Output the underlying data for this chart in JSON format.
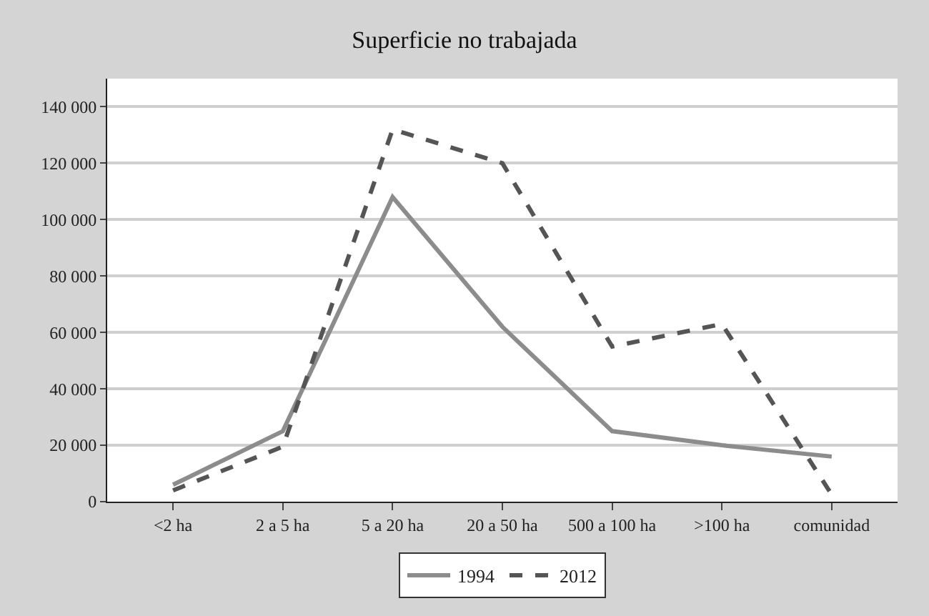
{
  "chart_data": {
    "type": "line",
    "title": "Superficie no trabajada",
    "categories": [
      "<2 ha",
      "2 a 5 ha",
      "5 a 20 ha",
      "20 a 50 ha",
      "500 a 100 ha",
      ">100 ha",
      "comunidad"
    ],
    "series": [
      {
        "name": "1994",
        "color": "#8c8c8c",
        "line_style": "solid",
        "values": [
          6000,
          25000,
          108000,
          62000,
          25000,
          20000,
          16000
        ]
      },
      {
        "name": "2012",
        "color": "#555555",
        "line_style": "dashed",
        "values": [
          4000,
          19500,
          132000,
          120000,
          55000,
          63000,
          2500
        ]
      }
    ],
    "ylim": [
      0,
      150000
    ],
    "yticks": [
      {
        "value": 0,
        "label": "0"
      },
      {
        "value": 20000,
        "label": "20 000"
      },
      {
        "value": 40000,
        "label": "40 000"
      },
      {
        "value": 60000,
        "label": "60 000"
      },
      {
        "value": 80000,
        "label": "80 000"
      },
      {
        "value": 100000,
        "label": "100 000"
      },
      {
        "value": 120000,
        "label": "120 000"
      },
      {
        "value": 140000,
        "label": "140 000"
      }
    ],
    "grid": "y",
    "legend": "bottom",
    "marker": "none"
  }
}
